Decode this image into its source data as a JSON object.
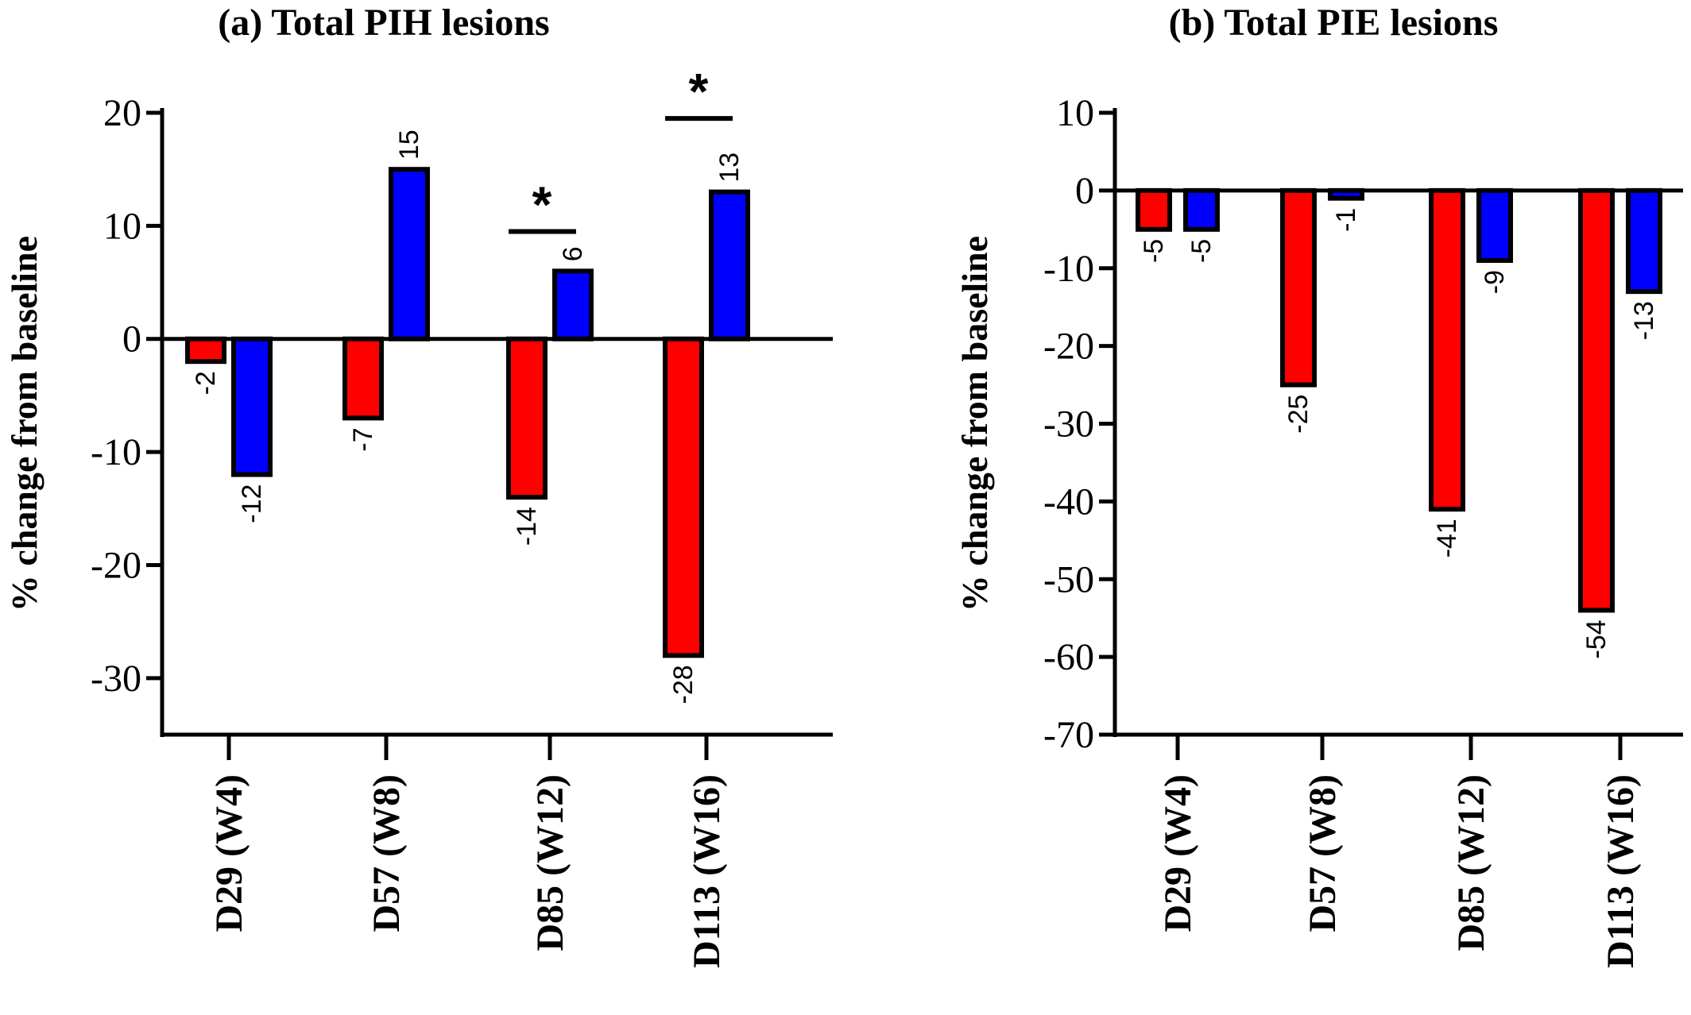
{
  "chart_data": [
    {
      "type": "bar",
      "title": "(a) Total PIH lesions",
      "xlabel": "",
      "ylabel": "% change from baseline",
      "ylim": [
        -35,
        20
      ],
      "yticks": [
        20,
        10,
        0,
        -10,
        -20,
        -30
      ],
      "grid": false,
      "legend": "none",
      "categories": [
        "D29 (W4)",
        "D57 (W8)",
        "D85 (W12)",
        "D113 (W16)"
      ],
      "series": [
        {
          "color": "#ff0000",
          "values": [
            -2,
            -7,
            -14,
            -28
          ]
        },
        {
          "color": "#0000ff",
          "values": [
            -12,
            15,
            6,
            13
          ]
        }
      ],
      "data_labels": [
        [
          "-2",
          "-7",
          "-14",
          "-28"
        ],
        [
          "-12",
          "15",
          "6",
          "13"
        ]
      ],
      "annotations": [
        {
          "text": "*",
          "category": "D85 (W12)",
          "y": 9.5
        },
        {
          "text": "*",
          "category": "D113 (W16)",
          "y": 19.5
        }
      ]
    },
    {
      "type": "bar",
      "title": "(b) Total PIE lesions",
      "xlabel": "",
      "ylabel": "% change from baseline",
      "ylim": [
        -70,
        10
      ],
      "yticks": [
        10,
        0,
        -10,
        -20,
        -30,
        -40,
        -50,
        -60,
        -70
      ],
      "grid": false,
      "legend": "none",
      "categories": [
        "D29 (W4)",
        "D57 (W8)",
        "D85 (W12)",
        "D113 (W16)"
      ],
      "series": [
        {
          "color": "#ff0000",
          "values": [
            -5,
            -25,
            -41,
            -54
          ]
        },
        {
          "color": "#0000ff",
          "values": [
            -5,
            -1,
            -9,
            -13
          ]
        }
      ],
      "data_labels": [
        [
          "-5",
          "-25",
          "-41",
          "-54"
        ],
        [
          "-5",
          "-1",
          "-9",
          "-13"
        ]
      ],
      "annotations": []
    }
  ]
}
